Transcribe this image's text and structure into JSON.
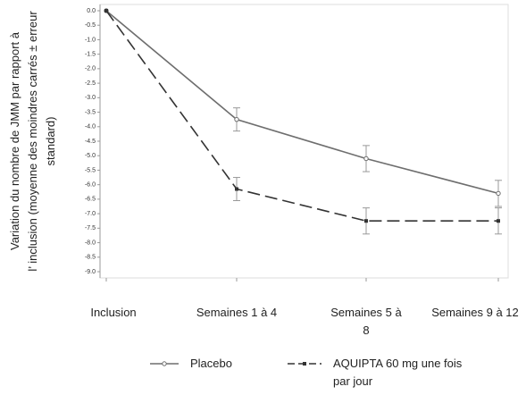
{
  "chart_data": {
    "type": "line",
    "ylabel_lines": [
      "Variation du nombre de JMM par rapport à",
      "l’ inclusion (moyenne des moindres carrés ± erreur",
      "standard)"
    ],
    "categories": [
      "Inclusion",
      "Semaines 1 à 4",
      "Semaines 5 à 8",
      "Semaines 9 à 12"
    ],
    "series": [
      {
        "name": "Placebo",
        "color": "#6e6e6e",
        "dash": false,
        "marker": "open-circle",
        "values": [
          0,
          -3.75,
          -5.1,
          -6.3
        ],
        "errors": [
          0,
          0.4,
          0.45,
          0.45
        ]
      },
      {
        "name": "AQUIPTA 60 mg une fois par jour",
        "color": "#333333",
        "dash": true,
        "marker": "square",
        "values": [
          0,
          -6.15,
          -7.25,
          -7.25
        ],
        "errors": [
          0,
          0.4,
          0.45,
          0.45
        ]
      }
    ],
    "ylim": [
      0,
      -9
    ],
    "yticks": [
      {
        "value": 0,
        "label": "0.0"
      },
      -0.5,
      {
        "value": -1,
        "label": "-1.0"
      },
      -1.5,
      {
        "value": -2,
        "label": "-2.0"
      },
      -2.5,
      {
        "value": -3,
        "label": "-3.0"
      },
      -3.5,
      {
        "value": -4,
        "label": "-4.0"
      },
      -4.5,
      {
        "value": -5,
        "label": "-5.0"
      },
      -5.5,
      {
        "value": -6,
        "label": "-6.0"
      },
      -6.5,
      {
        "value": -7,
        "label": "-7.0"
      },
      -7.5,
      {
        "value": -8,
        "label": "-8.0"
      },
      -8.5,
      {
        "value": -9,
        "label": "-9.0"
      }
    ]
  }
}
